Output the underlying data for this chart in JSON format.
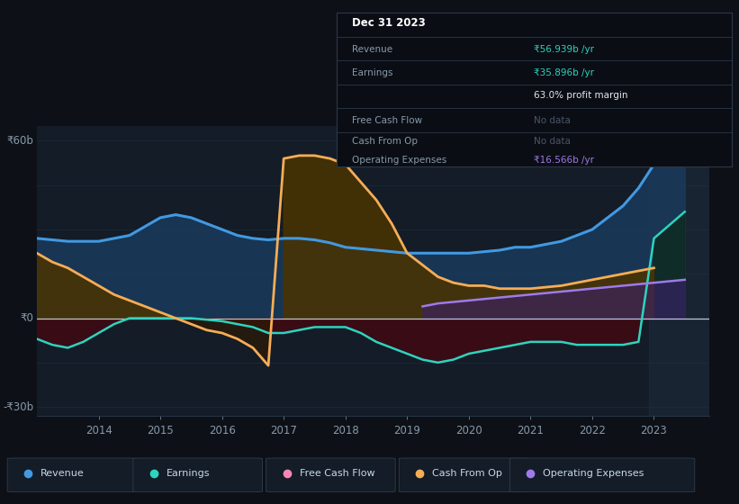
{
  "background_color": "#0d1117",
  "chart_bg": "#131c27",
  "info_box_bg": "#0a0e14",
  "grid_color": "#1a2535",
  "zero_line_color": "#ffffff",
  "xlabel_color": "#8899aa",
  "years": [
    2013.0,
    2013.25,
    2013.5,
    2013.75,
    2014.0,
    2014.25,
    2014.5,
    2014.75,
    2015.0,
    2015.25,
    2015.5,
    2015.75,
    2016.0,
    2016.25,
    2016.5,
    2016.75,
    2017.0,
    2017.25,
    2017.5,
    2017.75,
    2018.0,
    2018.25,
    2018.5,
    2018.75,
    2019.0,
    2019.25,
    2019.5,
    2019.75,
    2020.0,
    2020.25,
    2020.5,
    2020.75,
    2021.0,
    2021.25,
    2021.5,
    2021.75,
    2022.0,
    2022.25,
    2022.5,
    2022.75,
    2023.0,
    2023.5
  ],
  "revenue": [
    27,
    26.5,
    26,
    26,
    26,
    27,
    28,
    31,
    34,
    35,
    34,
    32,
    30,
    28,
    27,
    26.5,
    27,
    27,
    26.5,
    25.5,
    24,
    23.5,
    23,
    22.5,
    22,
    22,
    22,
    22,
    22,
    22.5,
    23,
    24,
    24,
    25,
    26,
    28,
    30,
    34,
    38,
    44,
    52,
    60
  ],
  "earnings": [
    -7,
    -9,
    -10,
    -8,
    -5,
    -2,
    0,
    0,
    0,
    0,
    0,
    -0.5,
    -1,
    -2,
    -3,
    -5,
    -5,
    -4,
    -3,
    -3,
    -3,
    -5,
    -8,
    -10,
    -12,
    -14,
    -15,
    -14,
    -12,
    -11,
    -10,
    -9,
    -8,
    -8,
    -8,
    -9,
    -9,
    -9,
    -9,
    -8,
    27,
    36
  ],
  "cash_from_op": [
    22,
    19,
    17,
    14,
    11,
    8,
    6,
    4,
    2,
    0,
    -2,
    -4,
    -5,
    -7,
    -10,
    -16,
    54,
    55,
    55,
    54,
    52,
    46,
    40,
    32,
    22,
    18,
    14,
    12,
    11,
    11,
    10,
    10,
    10,
    10.5,
    11,
    12,
    13,
    14,
    15,
    16,
    17,
    null
  ],
  "free_cash_flow": [
    null,
    null,
    null,
    null,
    null,
    null,
    null,
    null,
    null,
    null,
    null,
    null,
    null,
    null,
    null,
    null,
    null,
    null,
    null,
    null,
    null,
    null,
    null,
    null,
    null,
    null,
    null,
    null,
    null,
    null,
    null,
    null,
    null,
    null,
    null,
    null,
    null,
    null,
    null,
    null,
    null,
    null
  ],
  "op_expenses": [
    null,
    null,
    null,
    null,
    null,
    null,
    null,
    null,
    null,
    null,
    null,
    null,
    null,
    null,
    null,
    null,
    null,
    null,
    null,
    null,
    null,
    null,
    null,
    null,
    null,
    4,
    5,
    5.5,
    6,
    6.5,
    7,
    7.5,
    8,
    8.5,
    9,
    9.5,
    10,
    10.5,
    11,
    11.5,
    12,
    13
  ],
  "revenue_color": "#4299e1",
  "earnings_color": "#2dd4bf",
  "cash_from_op_color": "#f6ad55",
  "free_cash_flow_color": "#f687b3",
  "op_expenses_color": "#9f7aea",
  "revenue_fill_color": "#1a3a5c",
  "earnings_fill_neg_color": "#3d0a14",
  "earnings_fill_pos_color": "#0d2a1e",
  "cash_from_op_fill_pos_color": "#4a3300",
  "cash_from_op_fill_neg_color": "#2d1a05",
  "op_expenses_fill_color": "#3b1f6b",
  "legend_bg": "#111827",
  "legend_border": "#2d3748",
  "info_box_date": "Dec 31 2023",
  "info_box_revenue_label": "Revenue",
  "info_box_revenue_value": "₹56.939b /yr",
  "info_box_earnings_label": "Earnings",
  "info_box_earnings_value": "₹35.896b /yr",
  "info_box_margin": "63.0% profit margin",
  "info_box_fcf_label": "Free Cash Flow",
  "info_box_fcf_value": "No data",
  "info_box_cashop_label": "Cash From Op",
  "info_box_cashop_value": "No data",
  "info_box_opex_label": "Operating Expenses",
  "info_box_opex_value": "₹16.566b /yr",
  "info_value_color": "#2dd4bf",
  "info_nodata_color": "#4a5568",
  "info_opex_color": "#9f7aea",
  "info_margin_color": "#e2e8f0",
  "legend_items": [
    {
      "color": "#4299e1",
      "label": "Revenue"
    },
    {
      "color": "#2dd4bf",
      "label": "Earnings"
    },
    {
      "color": "#f687b3",
      "label": "Free Cash Flow"
    },
    {
      "color": "#f6ad55",
      "label": "Cash From Op"
    },
    {
      "color": "#9f7aea",
      "label": "Operating Expenses"
    }
  ]
}
